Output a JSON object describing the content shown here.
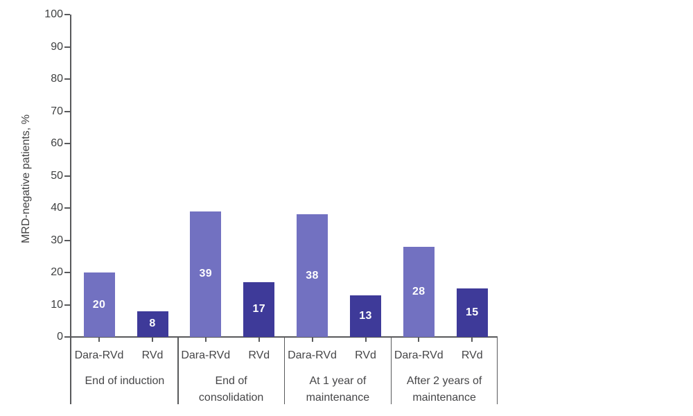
{
  "chart_data": {
    "type": "bar",
    "title": "",
    "ylabel": "MRD-negative patients, %",
    "xlabel": "",
    "ylim": [
      0,
      100
    ],
    "yticks": [
      0,
      10,
      20,
      30,
      40,
      50,
      60,
      70,
      80,
      90,
      100
    ],
    "grid": false,
    "legend": "none (series labeled under each bar)",
    "series_names": [
      "Dara-RVd",
      "RVd"
    ],
    "colors": {
      "dara_rvd_bar": "#7271c1",
      "rvd_bar": "#3e3a99",
      "axis": "#58595b",
      "label_text": "#454547",
      "tick_text": "#3f4041",
      "bar_value_text": "#ffffff",
      "background": "#ffffff"
    },
    "groups": [
      {
        "label_lines": [
          "End of induction"
        ],
        "bars": [
          {
            "name": "Dara-RVd",
            "value": 20
          },
          {
            "name": "RVd",
            "value": 8
          }
        ]
      },
      {
        "label_lines": [
          "End of",
          "consolidation"
        ],
        "bars": [
          {
            "name": "Dara-RVd",
            "value": 39
          },
          {
            "name": "RVd",
            "value": 17
          }
        ]
      },
      {
        "label_lines": [
          "At 1 year of",
          "maintenance"
        ],
        "bars": [
          {
            "name": "Dara-RVd",
            "value": 38
          },
          {
            "name": "RVd",
            "value": 13
          }
        ]
      },
      {
        "label_lines": [
          "After 2 years of",
          "maintenance"
        ],
        "bars": [
          {
            "name": "Dara-RVd",
            "value": 28
          },
          {
            "name": "RVd",
            "value": 15
          }
        ]
      }
    ]
  }
}
